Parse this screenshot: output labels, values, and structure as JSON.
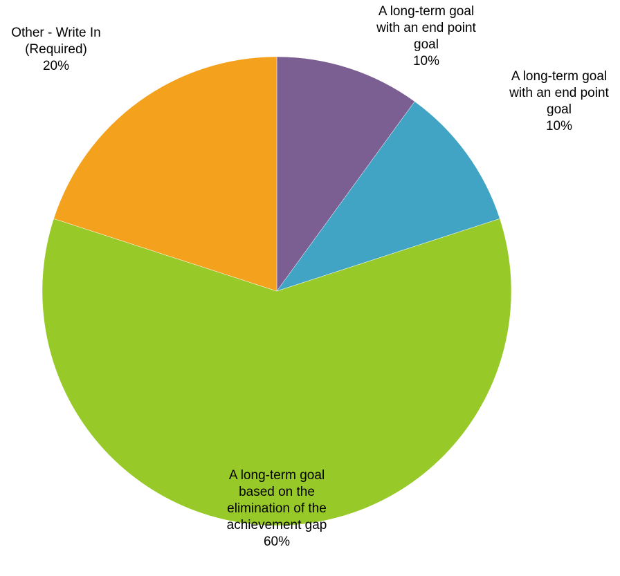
{
  "chart_data": {
    "type": "pie",
    "title": "",
    "slices": [
      {
        "label_lines": [
          "A long-term goal",
          "with an end point",
          "goal"
        ],
        "value": 10,
        "value_label": "10%",
        "color": "#7B5F93"
      },
      {
        "label_lines": [
          "A long-term goal",
          "with an end point",
          "goal"
        ],
        "value": 10,
        "value_label": "10%",
        "color": "#41A4C4"
      },
      {
        "label_lines": [
          "A long-term goal",
          "based on the",
          "elimination of the",
          "achievement gap"
        ],
        "value": 60,
        "value_label": "60%",
        "color": "#97C928"
      },
      {
        "label_lines": [
          "Other - Write In",
          "(Required)"
        ],
        "value": 20,
        "value_label": "20%",
        "color": "#F4A21E"
      }
    ],
    "legend": "none",
    "start_angle": "12-o-clock",
    "direction": "clockwise"
  }
}
